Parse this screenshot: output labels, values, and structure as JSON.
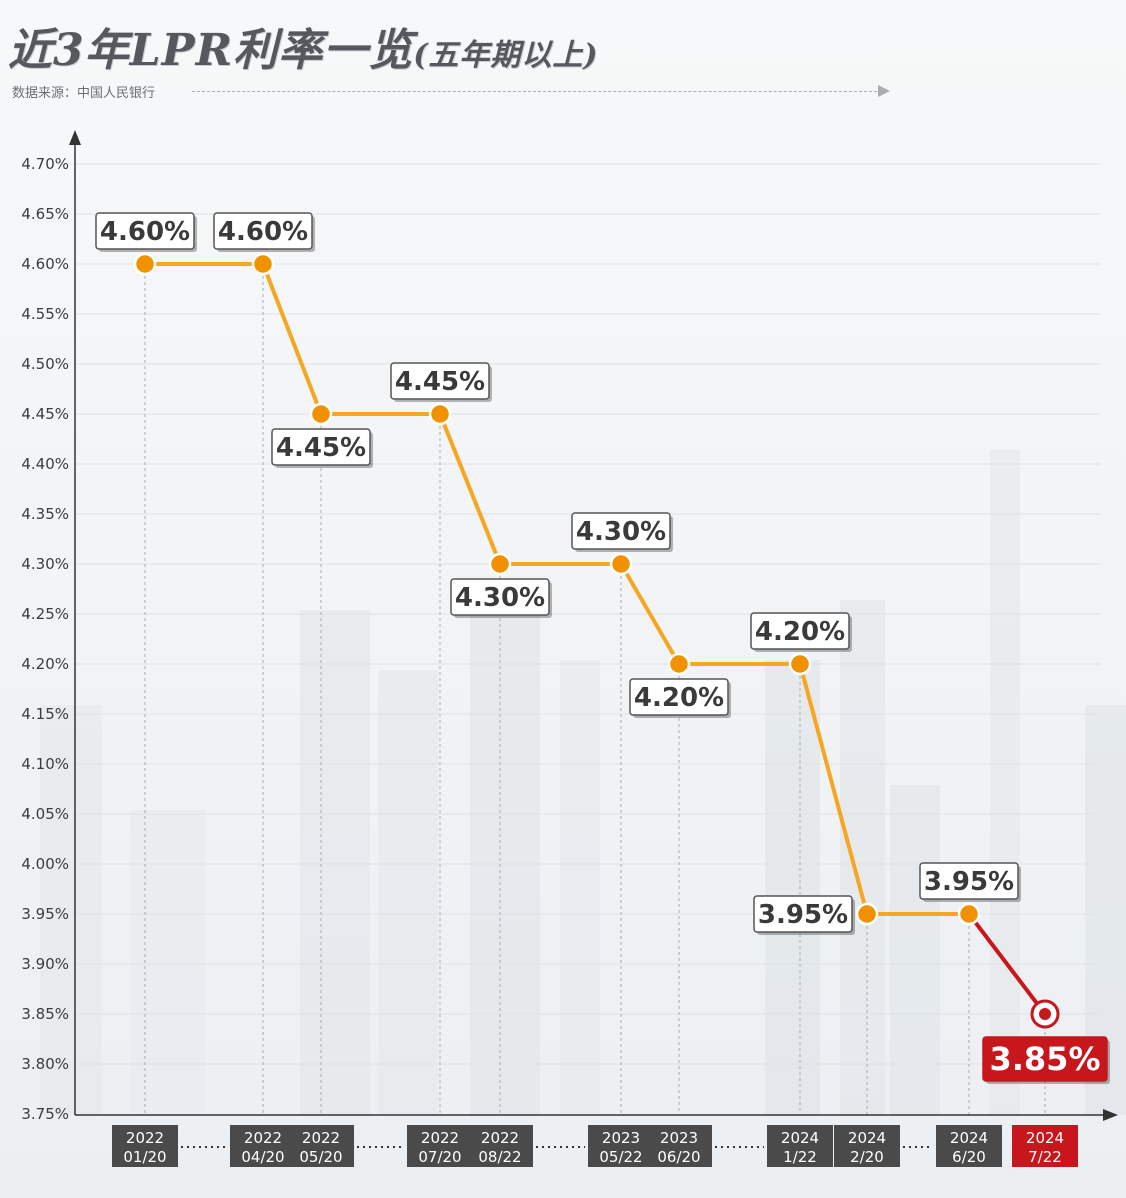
{
  "header": {
    "title": "近3年LPR利率一览",
    "subtitle": "(五年期以上)",
    "source": "数据来源：中国人民银行"
  },
  "colors": {
    "line": "#f5a623",
    "marker": "#f29100",
    "last": "#c8161d",
    "category_bg": "#4a4a4a",
    "label_border": "#555555"
  },
  "chart_data": {
    "type": "line",
    "title": "近3年LPR利率一览(五年期以上)",
    "xlabel": "",
    "ylabel": "",
    "ylim": [
      3.75,
      4.7
    ],
    "y_ticks": [
      "4.70%",
      "4.65%",
      "4.60%",
      "4.55%",
      "4.50%",
      "4.45%",
      "4.40%",
      "4.35%",
      "4.30%",
      "4.25%",
      "4.20%",
      "4.15%",
      "4.10%",
      "4.05%",
      "4.00%",
      "3.95%",
      "3.90%",
      "3.85%",
      "3.80%",
      "3.75%"
    ],
    "grid": true,
    "categories": [
      {
        "year": "2022",
        "date": "01/20"
      },
      {
        "year": "2022",
        "date": "04/20"
      },
      {
        "year": "2022",
        "date": "05/20"
      },
      {
        "year": "2022",
        "date": "07/20"
      },
      {
        "year": "2022",
        "date": "08/22"
      },
      {
        "year": "2023",
        "date": "05/22"
      },
      {
        "year": "2023",
        "date": "06/20"
      },
      {
        "year": "2024",
        "date": "1/22"
      },
      {
        "year": "2024",
        "date": "2/20"
      },
      {
        "year": "2024",
        "date": "6/20"
      },
      {
        "year": "2024",
        "date": "7/22"
      }
    ],
    "values": [
      4.6,
      4.6,
      4.45,
      4.45,
      4.3,
      4.3,
      4.2,
      4.2,
      3.95,
      3.95,
      3.85
    ],
    "labels": [
      "4.60%",
      "4.60%",
      "4.45%",
      "4.45%",
      "4.30%",
      "4.30%",
      "4.20%",
      "4.20%",
      "3.95%",
      "3.95%",
      "3.85%"
    ],
    "label_position": [
      "above",
      "above",
      "below",
      "above",
      "below",
      "above",
      "below",
      "above",
      "left",
      "above",
      "below"
    ],
    "gaps_after": [
      0,
      2,
      4,
      6,
      8
    ]
  }
}
